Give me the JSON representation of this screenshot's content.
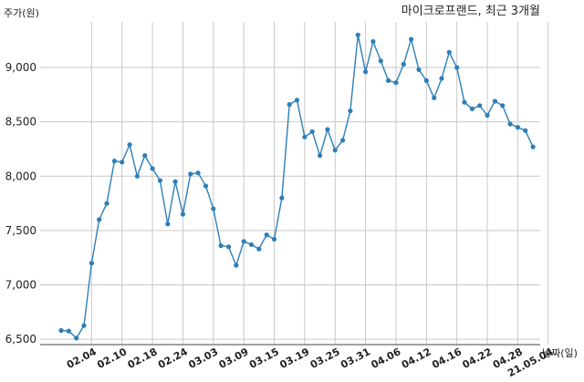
{
  "chart_data": {
    "type": "line",
    "title": "마이크로프랜드, 최근 3개월",
    "ylabel": "주가(원)",
    "xlabel": "날짜(일)",
    "ylim": [
      6450,
      9420
    ],
    "yticks": [
      6500,
      7000,
      7500,
      8000,
      8500,
      9000
    ],
    "ytick_labels": [
      "6,500",
      "7,000",
      "7,500",
      "8,000",
      "8,500",
      "9,000"
    ],
    "grid": true,
    "line_color": "#2e7fb8",
    "tick_labels": [
      "02.04",
      "02.10",
      "02.18",
      "02.24",
      "03.03",
      "03.09",
      "03.15",
      "03.19",
      "03.25",
      "03.31",
      "04.06",
      "04.12",
      "04.16",
      "04.22",
      "04.28",
      "21.05.04"
    ],
    "tick_positions": [
      4,
      8,
      12,
      16,
      20,
      24,
      28,
      32,
      36,
      40,
      44,
      48,
      52,
      56,
      60,
      64
    ],
    "series": [
      {
        "values": [
          6580,
          6575,
          6510,
          6625,
          7200,
          7600,
          7750,
          8140,
          8130,
          8290,
          8000,
          8190,
          8070,
          7960,
          7560,
          7950,
          7650,
          8020,
          8030,
          7910,
          7700,
          7360,
          7350,
          7180,
          7400,
          7370,
          7330,
          7460,
          7420,
          7800,
          8660,
          8700,
          8360,
          8410,
          8190,
          8430,
          8240,
          8330,
          8600,
          9300,
          8960,
          9240,
          9060,
          8880,
          8860,
          9030,
          9260,
          8980,
          8880,
          8720,
          8900,
          9140,
          9000,
          8680,
          8620,
          8650,
          8560,
          8690,
          8650,
          8480,
          8450,
          8420,
          8270
        ]
      }
    ]
  }
}
